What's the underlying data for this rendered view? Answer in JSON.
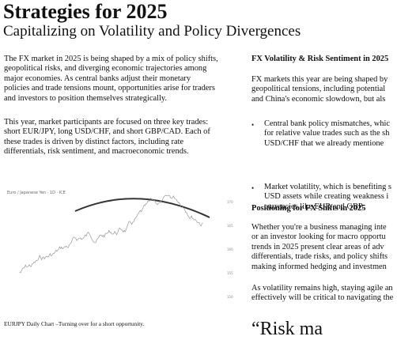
{
  "header": {
    "title": "Strategies for 2025",
    "subtitle": "Capitalizing on Volatility and Policy Divergences"
  },
  "left": {
    "paragraphs": [
      [
        "The FX market in 2025 is being shaped by a mix of policy shifts,",
        "geopolitical risks, and diverging economic trajectories among",
        "major economies. As central banks adjust their monetary",
        "policies and trade tensions mount, opportunities arise for traders",
        "and investors to position themselves strategically."
      ],
      [
        "This year, market participants are focused on three key trades:",
        "short EUR/JPY, long USD/CHF, and short GBP/CAD. Each of",
        "these trades is driven by distinct factors, including rate",
        "differentials, risk sentiment, and macroeconomic trends."
      ]
    ],
    "caption": "EURJPY Daily Chart –Turning over for a short opportunity."
  },
  "right": {
    "heading1": "FX Volatility & Risk Sentiment in 2025",
    "paragraph1": [
      "FX markets this year are being shaped by",
      "geopolitical tensions, including potential",
      "and China's economic slowdown, but als"
    ],
    "bullets": [
      [
        "Central bank policy mismatches, whic",
        "for relative value trades such as the sh",
        "USD/CHF that we already mentione"
      ],
      [
        "Market volatility, which is benefiting s",
        "USD assets while creating weakness i",
        "currencies like EUR and GBP."
      ]
    ],
    "heading2": "Positioning for FX Shifts in 2025",
    "paragraph2": [
      "Whether you're a business managing inte",
      "or an investor looking for macro opportu",
      "trends in 2025 present clear areas of adv",
      "differentials, trade risks, and policy shifts",
      "making informed hedging and investmen"
    ],
    "paragraph3": [
      "As volatility remains high, staying agile an",
      "effectively will be critical to navigating the"
    ],
    "quote": "“Risk ma"
  }
}
